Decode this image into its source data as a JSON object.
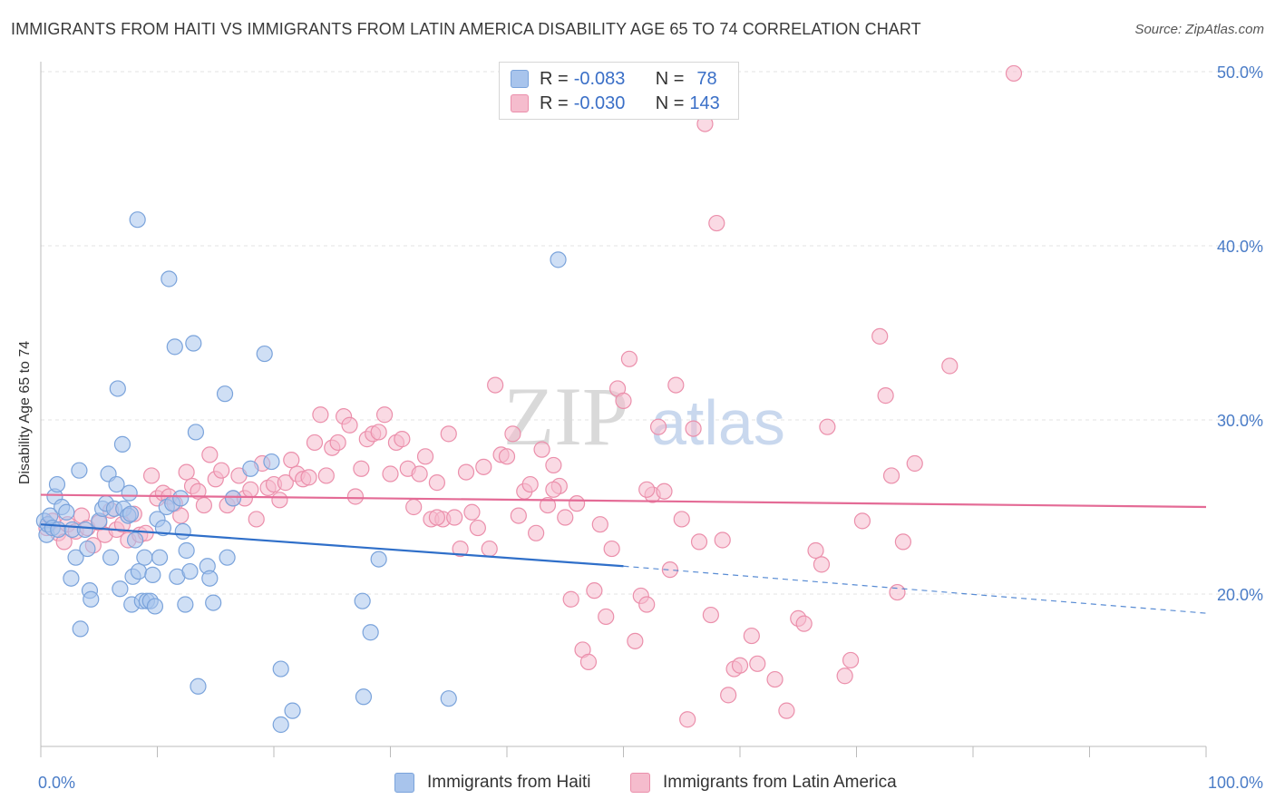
{
  "title": "IMMIGRANTS FROM HAITI VS IMMIGRANTS FROM LATIN AMERICA DISABILITY AGE 65 TO 74 CORRELATION CHART",
  "source": "Source: ZipAtlas.com",
  "watermark": {
    "zip": "ZIP",
    "atlas": "atlas"
  },
  "stats": [
    {
      "r_label": "R =",
      "r_value": "-0.083",
      "n_label": "N =",
      "n_value": "78",
      "color": "#a8c4ec",
      "border": "#7aa3db"
    },
    {
      "r_label": "R =",
      "r_value": "-0.030",
      "n_label": "N =",
      "n_value": "143",
      "color": "#f5bccd",
      "border": "#eb8fab"
    }
  ],
  "legend": [
    {
      "label": "Immigrants from Haiti",
      "color": "#a8c4ec",
      "border": "#7aa3db"
    },
    {
      "label": "Immigrants from Latin America",
      "color": "#f5bccd",
      "border": "#eb8fab"
    }
  ],
  "chart_data": {
    "type": "scatter",
    "title": "IMMIGRANTS FROM HAITI VS IMMIGRANTS FROM LATIN AMERICA DISABILITY AGE 65 TO 74 CORRELATION CHART",
    "xlabel": "",
    "ylabel": "Disability Age 65 to 74",
    "xlim": [
      0,
      100
    ],
    "ylim": [
      10,
      52
    ],
    "x_tick_labels": [
      "0.0%",
      "100.0%"
    ],
    "y_ticks": [
      20,
      30,
      40,
      50
    ],
    "y_tick_labels": [
      "20.0%",
      "30.0%",
      "40.0%",
      "50.0%"
    ],
    "grid": true,
    "series": [
      {
        "name": "Immigrants from Haiti",
        "color": "#a8c4ec",
        "stroke": "#7aa3db",
        "line_color": "#2f6fc9",
        "trend": {
          "x0": 0,
          "y0": 24.0,
          "x1": 50,
          "y1": 21.6,
          "dash_to_x": 100,
          "dash_to_y": 18.9
        },
        "points": [
          [
            0.3,
            24.2
          ],
          [
            0.5,
            23.4
          ],
          [
            0.6,
            24.0
          ],
          [
            0.8,
            24.5
          ],
          [
            1.0,
            23.8
          ],
          [
            1.2,
            25.6
          ],
          [
            1.4,
            26.3
          ],
          [
            1.5,
            23.7
          ],
          [
            1.8,
            25.0
          ],
          [
            2.2,
            24.7
          ],
          [
            2.6,
            20.9
          ],
          [
            2.7,
            23.7
          ],
          [
            3.0,
            22.1
          ],
          [
            3.3,
            27.1
          ],
          [
            3.4,
            18.0
          ],
          [
            3.8,
            23.7
          ],
          [
            4.0,
            22.6
          ],
          [
            4.2,
            20.2
          ],
          [
            4.3,
            19.7
          ],
          [
            5.0,
            24.2
          ],
          [
            5.3,
            24.9
          ],
          [
            5.6,
            25.2
          ],
          [
            5.8,
            26.9
          ],
          [
            6.0,
            22.1
          ],
          [
            6.3,
            24.9
          ],
          [
            6.5,
            26.3
          ],
          [
            6.6,
            31.8
          ],
          [
            6.8,
            20.3
          ],
          [
            7.0,
            28.6
          ],
          [
            7.1,
            24.9
          ],
          [
            7.5,
            24.5
          ],
          [
            7.6,
            25.8
          ],
          [
            7.7,
            24.6
          ],
          [
            7.8,
            19.4
          ],
          [
            7.9,
            21.0
          ],
          [
            8.1,
            23.1
          ],
          [
            8.3,
            41.5
          ],
          [
            8.4,
            21.3
          ],
          [
            8.7,
            19.6
          ],
          [
            8.9,
            22.1
          ],
          [
            9.1,
            19.6
          ],
          [
            9.4,
            19.6
          ],
          [
            9.6,
            21.1
          ],
          [
            9.8,
            19.3
          ],
          [
            10.0,
            24.3
          ],
          [
            10.2,
            22.1
          ],
          [
            10.5,
            23.8
          ],
          [
            10.8,
            25.0
          ],
          [
            11.0,
            38.1
          ],
          [
            11.3,
            25.2
          ],
          [
            11.5,
            34.2
          ],
          [
            11.7,
            21.0
          ],
          [
            12.0,
            25.5
          ],
          [
            12.2,
            23.6
          ],
          [
            12.4,
            19.4
          ],
          [
            12.5,
            22.5
          ],
          [
            12.8,
            21.3
          ],
          [
            13.1,
            34.4
          ],
          [
            13.3,
            29.3
          ],
          [
            13.5,
            14.7
          ],
          [
            14.3,
            21.6
          ],
          [
            14.5,
            20.9
          ],
          [
            14.8,
            19.5
          ],
          [
            15.8,
            31.5
          ],
          [
            16.0,
            22.1
          ],
          [
            16.5,
            25.5
          ],
          [
            18.0,
            27.2
          ],
          [
            19.2,
            33.8
          ],
          [
            19.8,
            27.6
          ],
          [
            20.6,
            15.7
          ],
          [
            20.6,
            12.5
          ],
          [
            21.6,
            13.3
          ],
          [
            27.6,
            19.6
          ],
          [
            27.7,
            14.1
          ],
          [
            28.3,
            17.8
          ],
          [
            29.0,
            22.0
          ],
          [
            35.0,
            14.0
          ],
          [
            44.4,
            39.2
          ]
        ]
      },
      {
        "name": "Immigrants from Latin America",
        "color": "#f5bccd",
        "stroke": "#eb8fab",
        "line_color": "#e46b96",
        "trend": {
          "x0": 0,
          "y0": 25.7,
          "x1": 100,
          "y1": 25.0
        },
        "points": [
          [
            0.5,
            23.8
          ],
          [
            1.0,
            24.2
          ],
          [
            1.5,
            23.5
          ],
          [
            2.0,
            23.0
          ],
          [
            2.3,
            24.0
          ],
          [
            3.0,
            23.6
          ],
          [
            3.5,
            24.5
          ],
          [
            4.0,
            23.8
          ],
          [
            4.5,
            22.8
          ],
          [
            5.0,
            24.1
          ],
          [
            5.5,
            23.4
          ],
          [
            6.0,
            24.8
          ],
          [
            6.5,
            23.7
          ],
          [
            7.0,
            24.0
          ],
          [
            7.5,
            23.1
          ],
          [
            8.0,
            24.6
          ],
          [
            8.5,
            23.4
          ],
          [
            9.0,
            23.5
          ],
          [
            9.5,
            26.8
          ],
          [
            10.0,
            25.5
          ],
          [
            10.5,
            25.8
          ],
          [
            11.0,
            25.6
          ],
          [
            11.5,
            25.2
          ],
          [
            12.0,
            24.5
          ],
          [
            12.5,
            27.0
          ],
          [
            13.0,
            26.2
          ],
          [
            13.5,
            25.9
          ],
          [
            14.0,
            25.1
          ],
          [
            14.5,
            28.0
          ],
          [
            15.0,
            26.6
          ],
          [
            15.5,
            27.1
          ],
          [
            16.0,
            25.1
          ],
          [
            16.5,
            25.5
          ],
          [
            17.0,
            26.8
          ],
          [
            17.5,
            25.5
          ],
          [
            18.0,
            26.0
          ],
          [
            18.5,
            24.3
          ],
          [
            19.0,
            27.5
          ],
          [
            19.5,
            26.1
          ],
          [
            20.0,
            26.3
          ],
          [
            20.5,
            25.4
          ],
          [
            21.0,
            26.4
          ],
          [
            21.5,
            27.7
          ],
          [
            22.0,
            26.9
          ],
          [
            22.5,
            26.6
          ],
          [
            23.0,
            26.7
          ],
          [
            23.5,
            28.7
          ],
          [
            24.0,
            30.3
          ],
          [
            24.5,
            26.8
          ],
          [
            25.0,
            28.4
          ],
          [
            25.5,
            28.7
          ],
          [
            26.0,
            30.2
          ],
          [
            26.5,
            29.7
          ],
          [
            27.0,
            25.6
          ],
          [
            27.5,
            27.2
          ],
          [
            28.0,
            28.9
          ],
          [
            28.5,
            29.2
          ],
          [
            29.0,
            29.3
          ],
          [
            29.5,
            30.3
          ],
          [
            30.0,
            26.9
          ],
          [
            30.5,
            28.7
          ],
          [
            31.0,
            28.9
          ],
          [
            31.5,
            27.2
          ],
          [
            32.0,
            25.0
          ],
          [
            32.5,
            26.9
          ],
          [
            33.0,
            27.9
          ],
          [
            33.5,
            24.3
          ],
          [
            34.0,
            26.4
          ],
          [
            34.5,
            24.3
          ],
          [
            35.0,
            29.2
          ],
          [
            35.5,
            24.4
          ],
          [
            36.0,
            22.6
          ],
          [
            36.5,
            27.0
          ],
          [
            37.0,
            24.7
          ],
          [
            37.5,
            23.8
          ],
          [
            38.0,
            27.3
          ],
          [
            38.5,
            22.6
          ],
          [
            39.0,
            32.0
          ],
          [
            39.5,
            28.0
          ],
          [
            40.0,
            27.9
          ],
          [
            40.5,
            29.2
          ],
          [
            41.0,
            24.5
          ],
          [
            41.5,
            25.9
          ],
          [
            42.0,
            26.3
          ],
          [
            42.5,
            23.5
          ],
          [
            43.0,
            28.3
          ],
          [
            43.5,
            25.1
          ],
          [
            44.0,
            27.4
          ],
          [
            44.5,
            26.2
          ],
          [
            45.0,
            24.4
          ],
          [
            45.5,
            19.7
          ],
          [
            46.0,
            25.2
          ],
          [
            46.5,
            16.8
          ],
          [
            47.0,
            16.1
          ],
          [
            47.5,
            20.2
          ],
          [
            48.0,
            24.0
          ],
          [
            48.5,
            18.7
          ],
          [
            49.0,
            22.6
          ],
          [
            49.5,
            31.8
          ],
          [
            50.0,
            31.1
          ],
          [
            50.5,
            33.5
          ],
          [
            51.0,
            17.3
          ],
          [
            51.5,
            19.9
          ],
          [
            52.0,
            19.4
          ],
          [
            52.5,
            25.7
          ],
          [
            53.0,
            29.6
          ],
          [
            53.5,
            25.9
          ],
          [
            54.0,
            21.4
          ],
          [
            54.5,
            32.0
          ],
          [
            55.0,
            24.3
          ],
          [
            55.5,
            12.8
          ],
          [
            56.0,
            29.5
          ],
          [
            56.5,
            23.0
          ],
          [
            57.0,
            47.0
          ],
          [
            57.5,
            18.8
          ],
          [
            58.0,
            41.3
          ],
          [
            58.5,
            23.1
          ],
          [
            59.0,
            14.2
          ],
          [
            59.5,
            15.7
          ],
          [
            60.0,
            15.9
          ],
          [
            61.0,
            17.6
          ],
          [
            61.5,
            16.0
          ],
          [
            63.0,
            15.1
          ],
          [
            64.0,
            13.3
          ],
          [
            65.0,
            18.6
          ],
          [
            65.5,
            18.3
          ],
          [
            66.5,
            22.5
          ],
          [
            67.0,
            21.7
          ],
          [
            67.5,
            29.6
          ],
          [
            69.0,
            15.3
          ],
          [
            69.5,
            16.2
          ],
          [
            70.5,
            24.2
          ],
          [
            72.0,
            34.8
          ],
          [
            72.5,
            31.4
          ],
          [
            73.0,
            26.8
          ],
          [
            73.5,
            20.1
          ],
          [
            74.0,
            23.0
          ],
          [
            75.0,
            27.5
          ],
          [
            78.0,
            33.1
          ],
          [
            83.5,
            49.9
          ],
          [
            34.0,
            24.4
          ],
          [
            44.0,
            26.0
          ],
          [
            52.0,
            26.0
          ]
        ]
      }
    ]
  }
}
